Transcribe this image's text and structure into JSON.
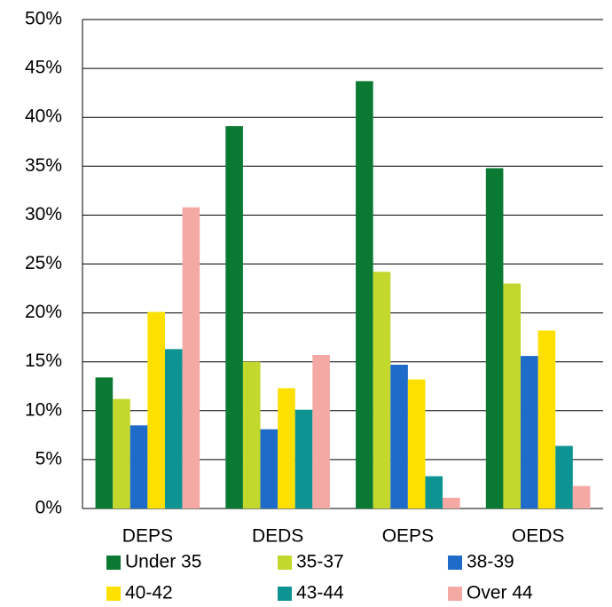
{
  "chart_data": {
    "type": "bar",
    "categories": [
      "DEPS",
      "DEDS",
      "OEPS",
      "OEDS"
    ],
    "series": [
      {
        "name": "Under 35",
        "color": "#0a7a32",
        "values": [
          13.4,
          39.1,
          43.7,
          34.8
        ]
      },
      {
        "name": "35-37",
        "color": "#c2d82c",
        "values": [
          11.2,
          15.0,
          24.2,
          23.0
        ]
      },
      {
        "name": "38-39",
        "color": "#1f6bc9",
        "values": [
          8.5,
          8.1,
          14.7,
          15.6
        ]
      },
      {
        "name": "40-42",
        "color": "#fde000",
        "values": [
          20.1,
          12.3,
          13.2,
          18.2
        ]
      },
      {
        "name": "43-44",
        "color": "#0e9393",
        "values": [
          16.3,
          10.1,
          3.3,
          6.4
        ]
      },
      {
        "name": "Over 44",
        "color": "#f5a9a5",
        "values": [
          30.8,
          15.7,
          1.1,
          2.3
        ]
      }
    ],
    "ylim": [
      0,
      50
    ],
    "yticks": [
      {
        "value": 0,
        "label": "0%"
      },
      {
        "value": 5,
        "label": "5%"
      },
      {
        "value": 10,
        "label": "10%"
      },
      {
        "value": 15,
        "label": "15%"
      },
      {
        "value": 20,
        "label": "20%"
      },
      {
        "value": 25,
        "label": "25%"
      },
      {
        "value": 30,
        "label": "30%"
      },
      {
        "value": 35,
        "label": "35%"
      },
      {
        "value": 40,
        "label": "40%"
      },
      {
        "value": 45,
        "label": "45%"
      },
      {
        "value": 50,
        "label": "50%"
      }
    ],
    "grid": true,
    "legend": "bottom"
  }
}
